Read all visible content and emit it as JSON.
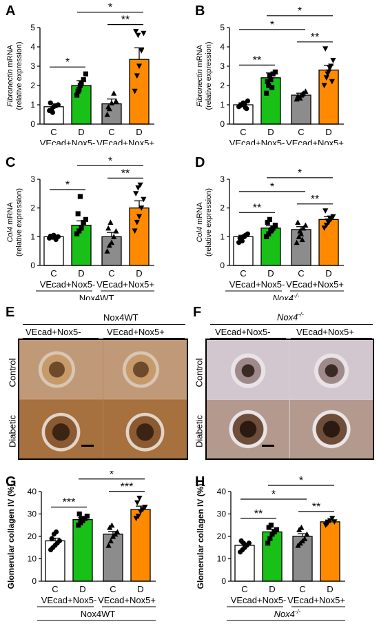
{
  "colors": {
    "C": "#ffffff",
    "D_minus": "#18c018",
    "C_plus": "#8c8c8c",
    "D_plus": "#ff8a00"
  },
  "categories": [
    "C",
    "D",
    "C",
    "D"
  ],
  "groups": [
    "VEcad+Nox5-",
    "VEcad+Nox5+"
  ],
  "chart_data": [
    {
      "panel": "A",
      "type": "bar",
      "ylabel_gene": "Fibronectin",
      "ylabel_unit": "mRNA",
      "ylabel_sub": "(relative expression)",
      "yticks": [
        "0",
        "1",
        "2",
        "3",
        "4",
        "5"
      ],
      "ylim": [
        0,
        5
      ],
      "genotype": "Nox4WT",
      "values": [
        0.9,
        2.0,
        1.05,
        3.35
      ],
      "errors": [
        0.15,
        0.25,
        0.25,
        0.6
      ],
      "points": [
        [
          0.7,
          0.75,
          0.9,
          0.95,
          1.0,
          1.1,
          0.6
        ],
        [
          1.5,
          1.8,
          2.1,
          2.3,
          2.6,
          1.7,
          2.0
        ],
        [
          0.5,
          0.8,
          1.1,
          1.6,
          1.2,
          0.9
        ],
        [
          1.7,
          2.5,
          3.0,
          3.8,
          4.7,
          4.8,
          4.6
        ]
      ],
      "annotations": [
        {
          "from": 0,
          "to": 1,
          "label": "*"
        },
        {
          "from": 2,
          "to": 3,
          "label": "**"
        },
        {
          "from": 1,
          "to": 3,
          "label": "*"
        }
      ]
    },
    {
      "panel": "B",
      "type": "bar",
      "ylabel_gene": "Fibronectin",
      "ylabel_unit": "mRNA",
      "ylabel_sub": "(relative expression)",
      "yticks": [
        "0",
        "1",
        "2",
        "3",
        "4",
        "5"
      ],
      "ylim": [
        0,
        5
      ],
      "genotype": "Nox4",
      "values": [
        1.0,
        2.4,
        1.5,
        2.8
      ],
      "errors": [
        0.1,
        0.25,
        0.1,
        0.25
      ],
      "points": [
        [
          0.9,
          1.0,
          1.1,
          0.85,
          1.2,
          0.95,
          1.0,
          1.05,
          0.8
        ],
        [
          1.6,
          2.0,
          2.3,
          2.6,
          2.7,
          2.2,
          2.5,
          1.9
        ],
        [
          1.3,
          1.4,
          1.5,
          1.6,
          1.7,
          1.45,
          1.35,
          1.55
        ],
        [
          2.0,
          2.4,
          2.7,
          3.0,
          3.3,
          3.9,
          2.6,
          2.9,
          2.2
        ]
      ],
      "annotations": [
        {
          "from": 0,
          "to": 1,
          "label": "**"
        },
        {
          "from": 2,
          "to": 3,
          "label": "**"
        },
        {
          "from": 0,
          "to": 2,
          "label": "*"
        },
        {
          "from": 1,
          "to": 3,
          "label": "*"
        }
      ]
    },
    {
      "panel": "C",
      "type": "bar",
      "ylabel_gene": "Col4",
      "ylabel_unit": "mRNA",
      "ylabel_sub": "(relative expression)",
      "yticks": [
        "0",
        "1",
        "2",
        "3"
      ],
      "ylim": [
        0,
        3
      ],
      "genotype": "Nox4WT",
      "values": [
        1.0,
        1.4,
        1.0,
        2.0
      ],
      "errors": [
        0.05,
        0.15,
        0.15,
        0.25
      ],
      "points": [
        [
          0.95,
          1.0,
          1.05,
          0.9,
          1.0,
          1.02,
          0.98
        ],
        [
          1.1,
          1.2,
          1.3,
          1.5,
          1.6,
          1.8,
          2.4
        ],
        [
          0.5,
          0.7,
          0.8,
          1.0,
          1.2,
          1.3,
          1.5
        ],
        [
          1.2,
          1.5,
          1.7,
          2.0,
          2.3,
          2.5,
          2.7,
          2.8
        ]
      ],
      "annotations": [
        {
          "from": 0,
          "to": 1,
          "label": "*"
        },
        {
          "from": 2,
          "to": 3,
          "label": "**"
        },
        {
          "from": 1,
          "to": 3,
          "label": "*"
        }
      ]
    },
    {
      "panel": "D",
      "type": "bar",
      "ylabel_gene": "Col4",
      "ylabel_unit": "mRNA",
      "ylabel_sub": "(relative expression)",
      "yticks": [
        "0",
        "1",
        "2",
        "3"
      ],
      "ylim": [
        0,
        3
      ],
      "genotype": "Nox4",
      "values": [
        1.0,
        1.3,
        1.25,
        1.6
      ],
      "errors": [
        0.05,
        0.08,
        0.1,
        0.1
      ],
      "points": [
        [
          0.8,
          0.9,
          1.0,
          1.05,
          1.1,
          0.95,
          0.85,
          1.0
        ],
        [
          1.0,
          1.1,
          1.2,
          1.3,
          1.4,
          1.5,
          1.6,
          1.25
        ],
        [
          0.8,
          1.0,
          1.1,
          1.3,
          1.4,
          1.5,
          1.2,
          0.9
        ],
        [
          1.3,
          1.4,
          1.5,
          1.6,
          1.7,
          1.9,
          1.55,
          1.65
        ]
      ],
      "annotations": [
        {
          "from": 0,
          "to": 1,
          "label": "**"
        },
        {
          "from": 2,
          "to": 3,
          "label": "**"
        },
        {
          "from": 0,
          "to": 2,
          "label": "*"
        },
        {
          "from": 1,
          "to": 3,
          "label": "*"
        }
      ]
    },
    {
      "panel": "G",
      "type": "bar",
      "ylabel": "Glomerular collagen IV (%)",
      "yticks": [
        "0",
        "10",
        "20",
        "30",
        "40"
      ],
      "ylim": [
        0,
        40
      ],
      "genotype": "Nox4WT",
      "values": [
        18.0,
        27.5,
        21.0,
        32.0
      ],
      "errors": [
        1.2,
        0.8,
        1.2,
        1.5
      ],
      "points": [
        [
          14,
          15,
          16,
          17,
          18,
          19,
          21,
          22
        ],
        [
          25,
          26,
          27,
          28,
          29,
          30,
          28
        ],
        [
          16,
          18,
          20,
          21,
          22,
          24,
          25
        ],
        [
          28,
          29,
          31,
          32,
          33,
          35,
          37
        ]
      ],
      "annotations": [
        {
          "from": 0,
          "to": 1,
          "label": "***"
        },
        {
          "from": 2,
          "to": 3,
          "label": "***"
        },
        {
          "from": 1,
          "to": 3,
          "label": "*"
        }
      ]
    },
    {
      "panel": "H",
      "type": "bar",
      "ylabel": "Glomerular collagen IV (%)",
      "yticks": [
        "0",
        "10",
        "20",
        "30",
        "40"
      ],
      "ylim": [
        0,
        40
      ],
      "genotype": "Nox4",
      "values": [
        16.0,
        22.0,
        20.0,
        26.5
      ],
      "errors": [
        1.0,
        1.2,
        1.2,
        0.8
      ],
      "points": [
        [
          13,
          14,
          15,
          16,
          17,
          18,
          17
        ],
        [
          17,
          19,
          21,
          22,
          23,
          24,
          25
        ],
        [
          16,
          17,
          18,
          19,
          21,
          23,
          24
        ],
        [
          25,
          26,
          27,
          28,
          26.5,
          25.5
        ]
      ],
      "annotations": [
        {
          "from": 0,
          "to": 1,
          "label": "**"
        },
        {
          "from": 2,
          "to": 3,
          "label": "**"
        },
        {
          "from": 0,
          "to": 2,
          "label": "*"
        },
        {
          "from": 1,
          "to": 3,
          "label": "*"
        }
      ]
    }
  ],
  "histology": {
    "E": {
      "genotype": "Nox4WT",
      "columns": [
        "VEcad+Nox5-",
        "VEcad+Nox5+"
      ],
      "rows": [
        "Control",
        "Diabetic"
      ]
    },
    "F": {
      "genotype": "Nox4",
      "genotype_sup": "-/-",
      "columns": [
        "VEcad+Nox5-",
        "VEcad+Nox5+"
      ],
      "rows": [
        "Control",
        "Diabetic"
      ]
    }
  },
  "panel_labels": {
    "A": "A",
    "B": "B",
    "C": "C",
    "D": "D",
    "E": "E",
    "F": "F",
    "G": "G",
    "H": "H"
  },
  "sup_ko": "-/-"
}
